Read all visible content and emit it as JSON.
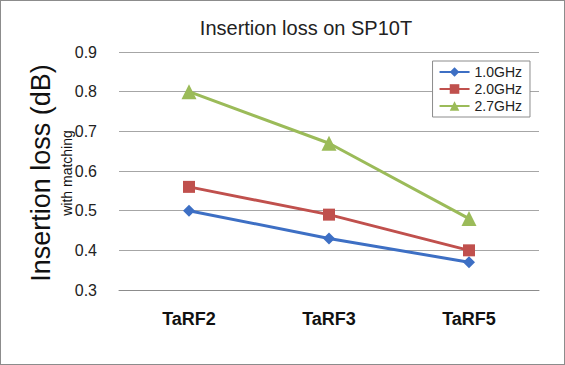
{
  "chart_data": {
    "type": "line",
    "title": "Insertion loss on SP10T",
    "ylabel": "Insertion loss (dB)",
    "ylabel_note": "with matching",
    "categories": [
      "TaRF2",
      "TaRF3",
      "TaRF5"
    ],
    "series": [
      {
        "name": "1.0GHz",
        "color": "#3d6fc4",
        "marker": "diamond",
        "values": [
          0.5,
          0.43,
          0.37
        ]
      },
      {
        "name": "2.0GHz",
        "color": "#c0504d",
        "marker": "square",
        "values": [
          0.56,
          0.49,
          0.4
        ]
      },
      {
        "name": "2.7GHz",
        "color": "#9bbb59",
        "marker": "triangle",
        "values": [
          0.8,
          0.67,
          0.48
        ]
      }
    ],
    "ylim": [
      0.3,
      0.9
    ],
    "yticks": [
      0.3,
      0.4,
      0.5,
      0.6,
      0.7,
      0.8,
      0.9
    ],
    "grid": true,
    "legend": "upper right"
  }
}
